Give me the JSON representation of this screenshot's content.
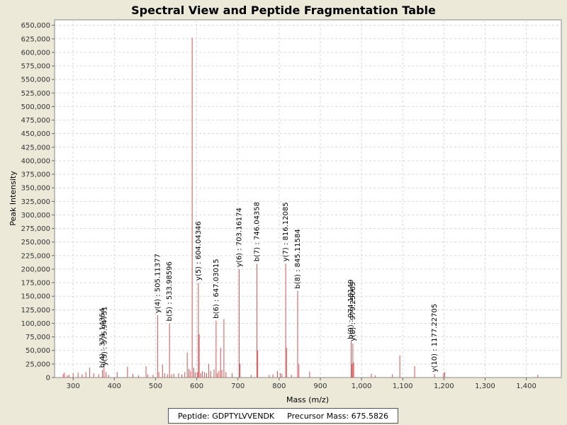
{
  "chart_data": {
    "type": "bar",
    "title": "Spectral View and Peptide Fragmentation Table",
    "xlabel": "Mass (m/z)",
    "ylabel": "Peak Intensity",
    "xlim": [
      255,
      1485
    ],
    "ylim": [
      0,
      660000
    ],
    "x_ticks": [
      {
        "v": 300,
        "t": "300"
      },
      {
        "v": 400,
        "t": "400"
      },
      {
        "v": 500,
        "t": "500"
      },
      {
        "v": 600,
        "t": "600"
      },
      {
        "v": 700,
        "t": "700"
      },
      {
        "v": 800,
        "t": "800"
      },
      {
        "v": 900,
        "t": "900"
      },
      {
        "v": 1000,
        "t": "1,000"
      },
      {
        "v": 1100,
        "t": "1,100"
      },
      {
        "v": 1200,
        "t": "1,200"
      },
      {
        "v": 1300,
        "t": "1,300"
      },
      {
        "v": 1400,
        "t": "1,400"
      }
    ],
    "y_ticks": [
      {
        "v": 0,
        "t": "0"
      },
      {
        "v": 25000,
        "t": "25,000"
      },
      {
        "v": 50000,
        "t": "50,000"
      },
      {
        "v": 75000,
        "t": "75,000"
      },
      {
        "v": 100000,
        "t": "100,000"
      },
      {
        "v": 125000,
        "t": "125,000"
      },
      {
        "v": 150000,
        "t": "150,000"
      },
      {
        "v": 175000,
        "t": "175,000"
      },
      {
        "v": 200000,
        "t": "200,000"
      },
      {
        "v": 225000,
        "t": "225,000"
      },
      {
        "v": 250000,
        "t": "250,000"
      },
      {
        "v": 275000,
        "t": "275,000"
      },
      {
        "v": 300000,
        "t": "300,000"
      },
      {
        "v": 325000,
        "t": "325,000"
      },
      {
        "v": 350000,
        "t": "350,000"
      },
      {
        "v": 375000,
        "t": "375,000"
      },
      {
        "v": 400000,
        "t": "400,000"
      },
      {
        "v": 425000,
        "t": "425,000"
      },
      {
        "v": 450000,
        "t": "450,000"
      },
      {
        "v": 475000,
        "t": "475,000"
      },
      {
        "v": 500000,
        "t": "500,000"
      },
      {
        "v": 525000,
        "t": "525,000"
      },
      {
        "v": 550000,
        "t": "550,000"
      },
      {
        "v": 575000,
        "t": "575,000"
      },
      {
        "v": 600000,
        "t": "600,000"
      },
      {
        "v": 625000,
        "t": "625,000"
      },
      {
        "v": 650000,
        "t": "650,000"
      }
    ],
    "grid": true,
    "legend": "none",
    "series_color": "#e05050",
    "peaks": [
      {
        "x": 276,
        "y": 7000
      },
      {
        "x": 279,
        "y": 9000
      },
      {
        "x": 286,
        "y": 4000
      },
      {
        "x": 290,
        "y": 5000
      },
      {
        "x": 300,
        "y": 8000
      },
      {
        "x": 312,
        "y": 9000
      },
      {
        "x": 322,
        "y": 6000
      },
      {
        "x": 331,
        "y": 10000
      },
      {
        "x": 340,
        "y": 18000
      },
      {
        "x": 350,
        "y": 8000
      },
      {
        "x": 362,
        "y": 6000
      },
      {
        "x": 371,
        "y": 14000
      },
      {
        "x": 375,
        "y": 18000
      },
      {
        "x": 380,
        "y": 10000
      },
      {
        "x": 386,
        "y": 5000
      },
      {
        "x": 407,
        "y": 10000
      },
      {
        "x": 432,
        "y": 20000
      },
      {
        "x": 445,
        "y": 7000
      },
      {
        "x": 459,
        "y": 4000
      },
      {
        "x": 477,
        "y": 21000
      },
      {
        "x": 481,
        "y": 6000
      },
      {
        "x": 494,
        "y": 5000
      },
      {
        "x": 505,
        "y": 115000
      },
      {
        "x": 508,
        "y": 10000
      },
      {
        "x": 517,
        "y": 24000
      },
      {
        "x": 522,
        "y": 8000
      },
      {
        "x": 529,
        "y": 6000
      },
      {
        "x": 534,
        "y": 100000
      },
      {
        "x": 539,
        "y": 6000
      },
      {
        "x": 545,
        "y": 7000
      },
      {
        "x": 556,
        "y": 8000
      },
      {
        "x": 564,
        "y": 6000
      },
      {
        "x": 571,
        "y": 10000
      },
      {
        "x": 577,
        "y": 46000
      },
      {
        "x": 581,
        "y": 16000
      },
      {
        "x": 585,
        "y": 12000
      },
      {
        "x": 589,
        "y": 627000
      },
      {
        "x": 593,
        "y": 18000
      },
      {
        "x": 597,
        "y": 10000
      },
      {
        "x": 602,
        "y": 10000
      },
      {
        "x": 604,
        "y": 175000
      },
      {
        "x": 606,
        "y": 80000
      },
      {
        "x": 610,
        "y": 8000
      },
      {
        "x": 614,
        "y": 12000
      },
      {
        "x": 619,
        "y": 10000
      },
      {
        "x": 624,
        "y": 8000
      },
      {
        "x": 629,
        "y": 25000
      },
      {
        "x": 634,
        "y": 12000
      },
      {
        "x": 642,
        "y": 15000
      },
      {
        "x": 647,
        "y": 105000
      },
      {
        "x": 650,
        "y": 8000
      },
      {
        "x": 654,
        "y": 12000
      },
      {
        "x": 658,
        "y": 55000
      },
      {
        "x": 661,
        "y": 14000
      },
      {
        "x": 666,
        "y": 108000
      },
      {
        "x": 671,
        "y": 10000
      },
      {
        "x": 686,
        "y": 8000
      },
      {
        "x": 703,
        "y": 200000
      },
      {
        "x": 705,
        "y": 26000
      },
      {
        "x": 732,
        "y": 5000
      },
      {
        "x": 746,
        "y": 210000
      },
      {
        "x": 748,
        "y": 50000
      },
      {
        "x": 776,
        "y": 5000
      },
      {
        "x": 785,
        "y": 6000
      },
      {
        "x": 796,
        "y": 12000
      },
      {
        "x": 803,
        "y": 8000
      },
      {
        "x": 807,
        "y": 7000
      },
      {
        "x": 816,
        "y": 210000
      },
      {
        "x": 818,
        "y": 55000
      },
      {
        "x": 830,
        "y": 5000
      },
      {
        "x": 845,
        "y": 160000
      },
      {
        "x": 848,
        "y": 25000
      },
      {
        "x": 874,
        "y": 11000
      },
      {
        "x": 975,
        "y": 67000
      },
      {
        "x": 977,
        "y": 25000
      },
      {
        "x": 979,
        "y": 63000
      },
      {
        "x": 981,
        "y": 28000
      },
      {
        "x": 1024,
        "y": 7000
      },
      {
        "x": 1033,
        "y": 4000
      },
      {
        "x": 1075,
        "y": 6000
      },
      {
        "x": 1093,
        "y": 41000
      },
      {
        "x": 1129,
        "y": 21000
      },
      {
        "x": 1177,
        "y": 6000
      },
      {
        "x": 1199,
        "y": 8000
      },
      {
        "x": 1202,
        "y": 10000
      },
      {
        "x": 1428,
        "y": 5000
      }
    ],
    "annotations": [
      {
        "x": 371.14354,
        "y": 14000,
        "text": "b(4) : 371.14354"
      },
      {
        "x": 375.94751,
        "y": 18000,
        "text": "y(3) : 375.94751"
      },
      {
        "x": 505.11377,
        "y": 115000,
        "text": "y(4) : 505.11377"
      },
      {
        "x": 533.98596,
        "y": 100000,
        "text": "b(5) : 533.98596"
      },
      {
        "x": 604.04346,
        "y": 175000,
        "text": "y(5) : 604.04346"
      },
      {
        "x": 647.03015,
        "y": 105000,
        "text": "b(6) : 647.03015"
      },
      {
        "x": 703.16174,
        "y": 200000,
        "text": "y(6) : 703.16174"
      },
      {
        "x": 746.04358,
        "y": 210000,
        "text": "b(7) : 746.04358"
      },
      {
        "x": 816.12085,
        "y": 210000,
        "text": "y(7) : 816.12085"
      },
      {
        "x": 845.11584,
        "y": 160000,
        "text": "b(8) : 845.11584"
      },
      {
        "x": 974.18149,
        "y": 67000,
        "text": "b(9) : 974.18149"
      },
      {
        "x": 979.25063,
        "y": 63000,
        "text": "y(8) : 979.25063"
      },
      {
        "x": 1177.22705,
        "y": 6000,
        "text": "y(10) : 1177.22705"
      }
    ]
  },
  "legend_box": {
    "peptide": "Peptide: GDPTYLVVENDK",
    "precursor": "Precursor Mass: 675.5826"
  }
}
